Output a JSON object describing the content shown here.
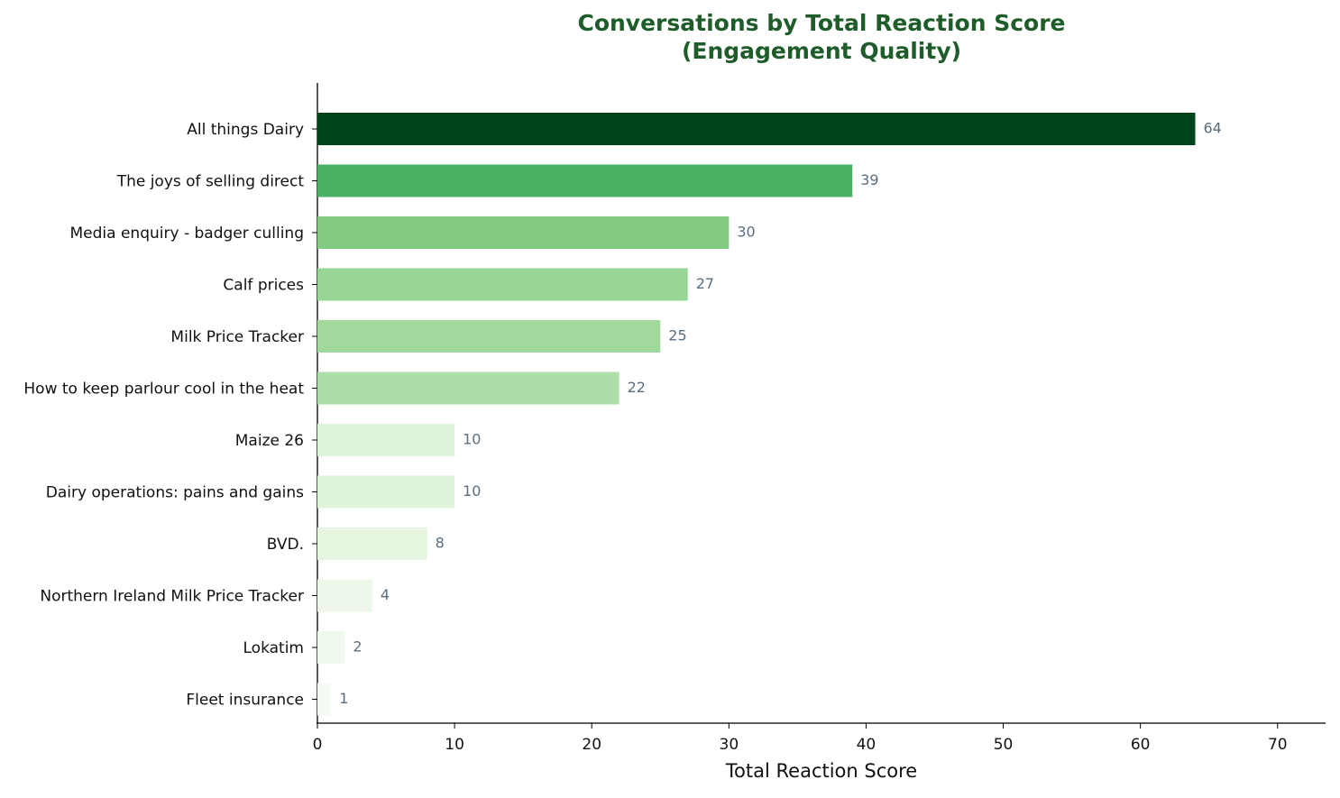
{
  "chart_data": {
    "type": "bar",
    "orientation": "horizontal",
    "title": [
      "Conversations by Total Reaction Score",
      "(Engagement Quality)"
    ],
    "x_label": "Total Reaction Score",
    "categories": [
      "All things Dairy",
      "The joys of selling direct",
      "Media enquiry - badger culling",
      "Calf prices",
      "Milk Price Tracker",
      "How to keep parlour cool in the heat",
      "Maize 26",
      "Dairy operations: pains and gains",
      "BVD.",
      "Northern Ireland Milk Price Tracker",
      "Lokatim",
      "Fleet insurance"
    ],
    "values": [
      64,
      39,
      30,
      27,
      25,
      22,
      10,
      10,
      8,
      4,
      2,
      1
    ],
    "colors": [
      "#00441b",
      "#4bb062",
      "#83cb82",
      "#98d594",
      "#a0d99b",
      "#addea7",
      "#e0f3db",
      "#e0f3db",
      "#e5f5e0",
      "#edf8ea",
      "#f0f9ed",
      "#f5fbf2"
    ],
    "xlim": [
      0,
      73.5
    ],
    "xticks": [
      0,
      10,
      20,
      30,
      40,
      50,
      60,
      70
    ]
  }
}
